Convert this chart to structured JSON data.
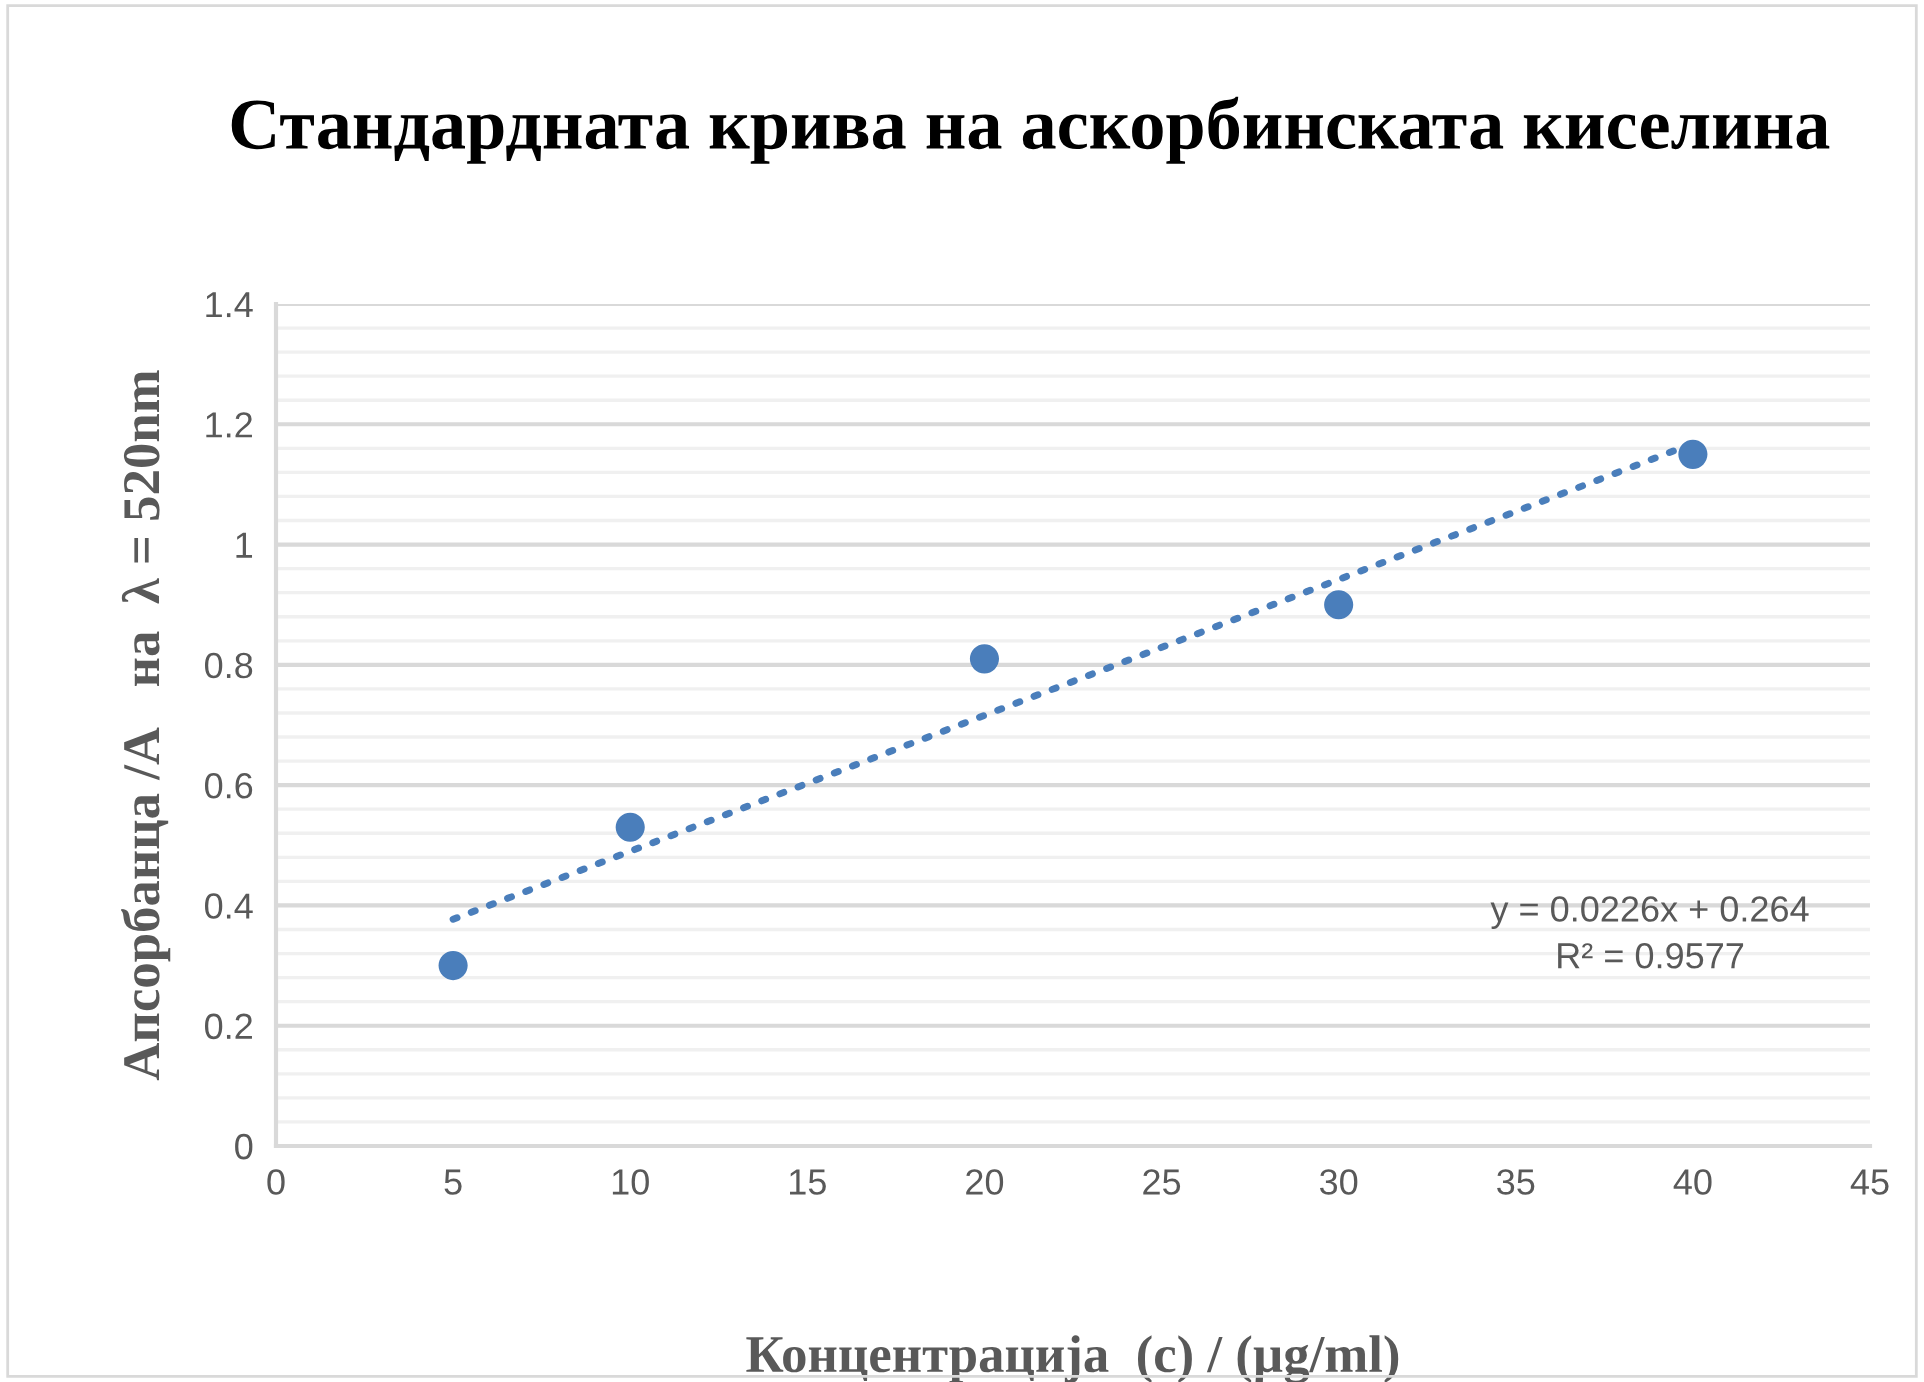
{
  "chart_data": {
    "type": "scatter",
    "title": "Стандардната крива на аскорбинската киселина",
    "xlabel": "Концентрација  (c) / (µg/ml)",
    "ylabel": "Апсорбанца /А   на  λ = 520nm",
    "x": [
      5,
      10,
      20,
      30,
      40
    ],
    "series": [
      {
        "color": "#4a7ebb",
        "values": [
          0.3,
          0.53,
          0.81,
          0.9,
          1.15
        ],
        "marker": "circle"
      },
      {
        "type": "line",
        "color": "#4a7ebb",
        "x": [
          5,
          40
        ],
        "values": [
          0.377,
          1.168
        ],
        "line_style": "dotted",
        "marker": "none"
      }
    ],
    "annotations": [
      "y = 0.0226x + 0.264\nR² = 0.9577"
    ],
    "xlim": [
      0,
      45
    ],
    "xticks": [
      0,
      5,
      10,
      15,
      20,
      25,
      30,
      35,
      40,
      45
    ],
    "ylim": [
      0,
      1.4
    ],
    "yticks": [
      0,
      0.2,
      0.4,
      0.6,
      0.8,
      1,
      1.2,
      1.4
    ],
    "grid": "y",
    "legend": false
  }
}
